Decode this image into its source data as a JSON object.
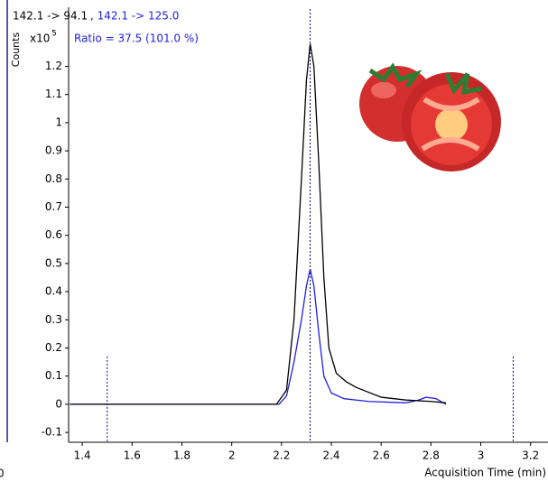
{
  "chart_data": {
    "type": "line",
    "title": "142.1 -> 94.1",
    "subtitle": " , 142.1 -> 125.0",
    "annotation": "Ratio = 37.5 (101.0 %)",
    "y_multiplier": "x10",
    "y_exponent": "5",
    "ylabel": "Counts",
    "xlabel": "Acquisition Time (min)",
    "edge_fragment": "0",
    "xlim": [
      1.345,
      3.27
    ],
    "ylim": [
      -0.135,
      1.41
    ],
    "xticks": [
      1.4,
      1.6,
      1.8,
      2,
      2.2,
      2.4,
      2.6,
      2.8,
      3,
      3.2
    ],
    "yticks": [
      -0.1,
      0,
      0.1,
      0.2,
      0.3,
      0.4,
      0.5,
      0.6,
      0.7,
      0.8,
      0.9,
      1,
      1.1,
      1.2
    ],
    "markers": [
      1.5,
      2.315,
      3.13
    ],
    "marker_color": "#00007f",
    "series": [
      {
        "name": "142.1 -> 94.1",
        "color": "#000000",
        "x": [
          1.35,
          2.18,
          2.22,
          2.25,
          2.28,
          2.3,
          2.315,
          2.33,
          2.35,
          2.37,
          2.39,
          2.42,
          2.46,
          2.5,
          2.6,
          2.7,
          2.8,
          2.86
        ],
        "values": [
          0,
          0,
          0.05,
          0.3,
          0.8,
          1.15,
          1.28,
          1.2,
          0.85,
          0.45,
          0.2,
          0.11,
          0.08,
          0.06,
          0.025,
          0.015,
          0.01,
          0.005
        ]
      },
      {
        "name": "142.1 -> 125.0",
        "color": "#2020e0",
        "x": [
          1.35,
          2.19,
          2.22,
          2.25,
          2.28,
          2.3,
          2.315,
          2.33,
          2.35,
          2.37,
          2.4,
          2.45,
          2.55,
          2.7,
          2.75,
          2.78,
          2.82,
          2.86
        ],
        "values": [
          0,
          0,
          0.03,
          0.15,
          0.3,
          0.42,
          0.48,
          0.42,
          0.25,
          0.1,
          0.04,
          0.02,
          0.01,
          0.005,
          0.015,
          0.025,
          0.02,
          0
        ]
      }
    ]
  }
}
